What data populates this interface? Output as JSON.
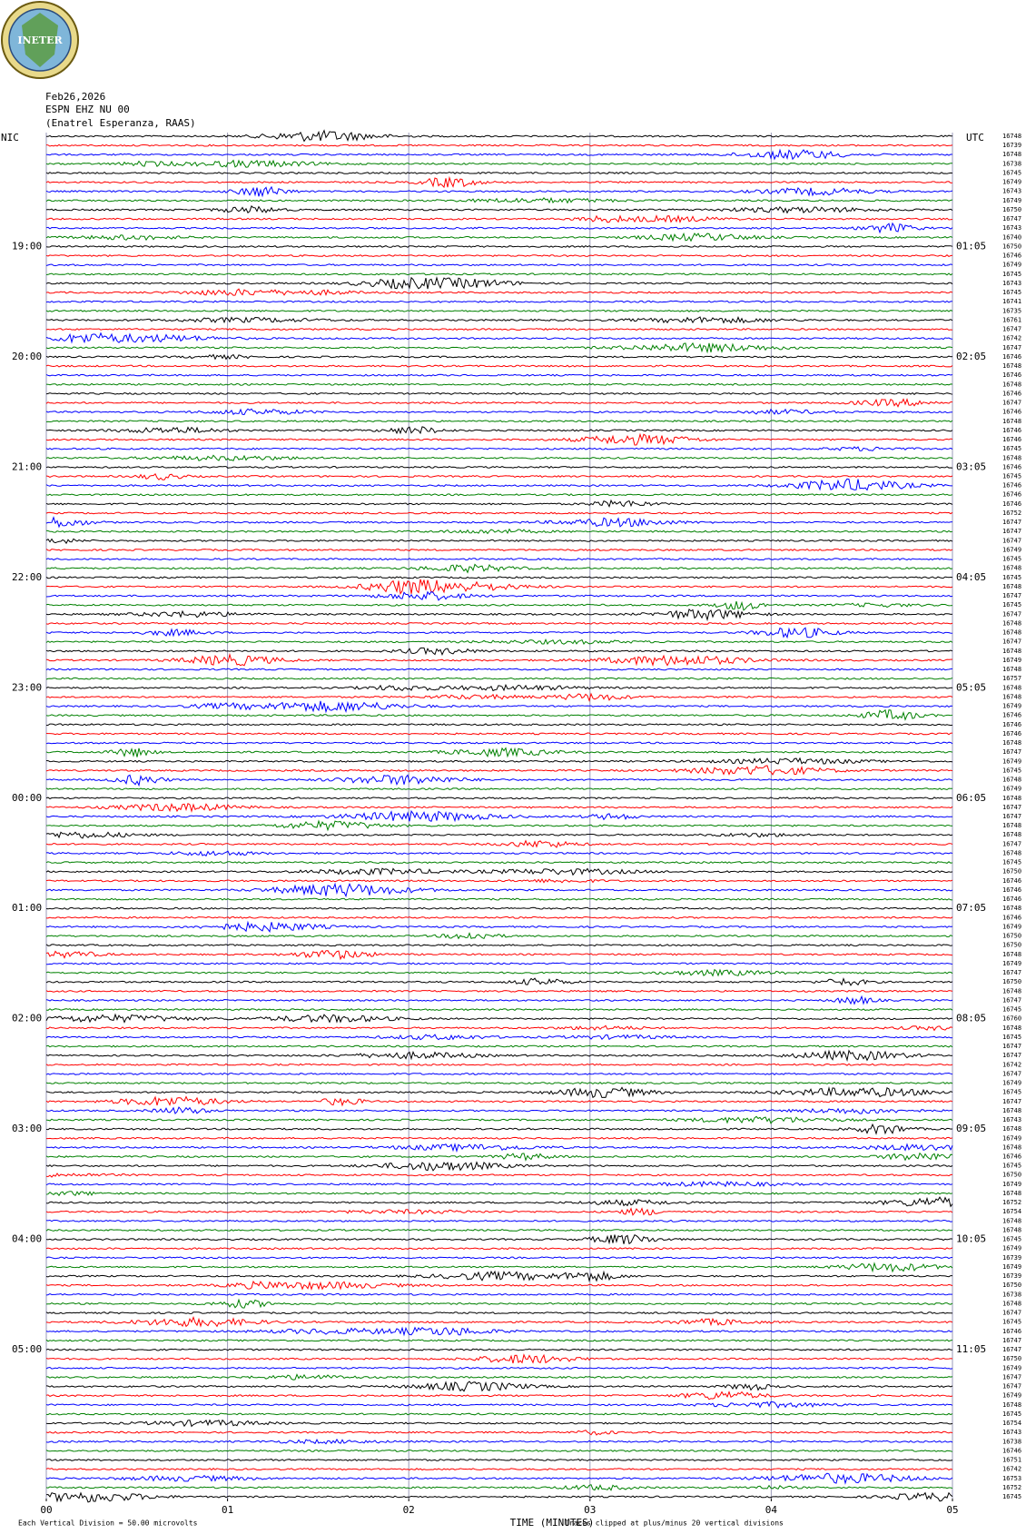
{
  "chart_data": {
    "type": "helicorder",
    "logo_text": "INETER",
    "date": "Feb26,2026",
    "station": "ESPN EHZ NU 00",
    "location": "(Enatrel Esperanza, RAAS)",
    "left_zone": "NIC",
    "right_zone": "UTC",
    "left_time_labels": [
      "19:00",
      "20:00",
      "21:00",
      "22:00",
      "23:00",
      "00:00",
      "01:00",
      "02:00",
      "03:00",
      "04:00",
      "05:00"
    ],
    "right_time_labels": [
      "01:05",
      "02:05",
      "03:05",
      "04:05",
      "05:05",
      "06:05",
      "07:05",
      "08:05",
      "09:05",
      "10:05",
      "11:05"
    ],
    "trace_labels": [
      "16748",
      "16739",
      "16748",
      "16738",
      "16745",
      "16749",
      "16743",
      "16749",
      "16750",
      "16747",
      "16743",
      "16740",
      "16750",
      "16746",
      "16749",
      "16745",
      "16743",
      "16745",
      "16741",
      "16735",
      "16761",
      "16747",
      "16742",
      "16747",
      "16746",
      "16748",
      "16746",
      "16748",
      "16746",
      "16747",
      "16746",
      "16748",
      "16746",
      "16746",
      "16745",
      "16748",
      "16746",
      "16745",
      "16746",
      "16746",
      "16746",
      "16752",
      "16747",
      "16747",
      "16747",
      "16749",
      "16745",
      "16748",
      "16745",
      "16748",
      "16747",
      "16745",
      "16747",
      "16748",
      "16748",
      "16747",
      "16748",
      "16749",
      "16748",
      "16757",
      "16748",
      "16748",
      "16749",
      "16746",
      "16746",
      "16746",
      "16748",
      "16747",
      "16749",
      "16745",
      "16748",
      "16749",
      "16748",
      "16747",
      "16747",
      "16748",
      "16748",
      "16747",
      "16748",
      "16745",
      "16750",
      "16746",
      "16746",
      "16746",
      "16748",
      "16746",
      "16749",
      "16750",
      "16750",
      "16748",
      "16749",
      "16747",
      "16750",
      "16748",
      "16747",
      "16745",
      "16760",
      "16748",
      "16745",
      "16747",
      "16747",
      "16742",
      "16747",
      "16749",
      "16745",
      "16747",
      "16748",
      "16743",
      "16748",
      "16749",
      "16748",
      "16746",
      "16745",
      "16750",
      "16749",
      "16748",
      "16752",
      "16754",
      "16748",
      "16748",
      "16745",
      "16749",
      "16739",
      "16749",
      "16739",
      "16750",
      "16738",
      "16748",
      "16747",
      "16745",
      "16746",
      "16747",
      "16747",
      "16750",
      "16749",
      "16747",
      "16747",
      "16749",
      "16748",
      "16745",
      "16754",
      "16743",
      "16738",
      "16746",
      "16751",
      "16742",
      "16753",
      "16752",
      "16745"
    ],
    "trace_colors": [
      "#000000",
      "#ff0000",
      "#0000ff",
      "#008000"
    ],
    "xlim": [
      0,
      5
    ],
    "xticks": [
      {
        "value": 0,
        "label": "00"
      },
      {
        "value": 1,
        "label": "01"
      },
      {
        "value": 2,
        "label": "02"
      },
      {
        "value": 3,
        "label": "03"
      },
      {
        "value": 4,
        "label": "04"
      },
      {
        "value": 5,
        "label": "05"
      }
    ],
    "grid": true,
    "xlabel": "TIME (MINUTES)",
    "scale_note": "Each Vertical Division =   50.00 microvolts",
    "clip_note": "Traces clipped at plus/minus 20 vertical divisions"
  }
}
